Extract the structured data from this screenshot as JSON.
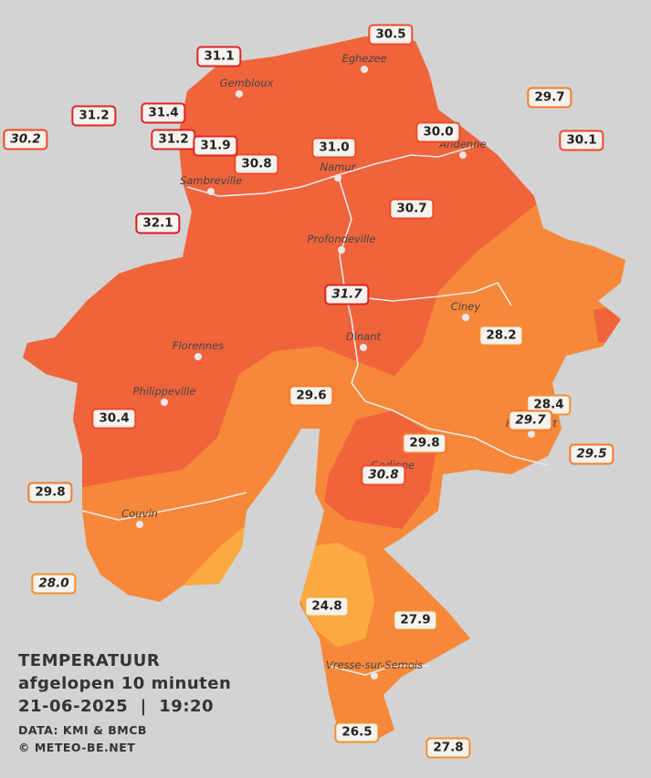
{
  "title": [
    "TEMPERATUUR",
    "afgelopen 10 minuten",
    "21-06-2025  |  19:20"
  ],
  "credits": [
    "DATA: KMI & BMCB",
    "© METEO-BE.NET"
  ],
  "towns": [
    "Eghezee",
    "Gembloux",
    "Andenne",
    "Namur",
    "Sambreville",
    "Profondeville",
    "Ciney",
    "Florennes",
    "Dinant",
    "Philippeville",
    "Rochefort",
    "Gedinne",
    "Couvin",
    "Vresse-sur-Semois"
  ],
  "stations": [
    {
      "label": "30.5",
      "color": "#ee4a28"
    },
    {
      "label": "31.1",
      "color": "#e02424"
    },
    {
      "label": "29.7",
      "color": "#f47a2a"
    },
    {
      "label": "31.2",
      "color": "#e02424"
    },
    {
      "label": "31.4",
      "color": "#e02424"
    },
    {
      "label": "30.2",
      "color": "#ee4a28",
      "italic": true
    },
    {
      "label": "31.2",
      "color": "#e02424"
    },
    {
      "label": "31.9",
      "color": "#e02424"
    },
    {
      "label": "31.0",
      "color": "#ee4a28"
    },
    {
      "label": "30.0",
      "color": "#ee4a28"
    },
    {
      "label": "30.1",
      "color": "#ee4a28"
    },
    {
      "label": "30.8",
      "color": "#ee4a28"
    },
    {
      "label": "32.1",
      "color": "#d8182a"
    },
    {
      "label": "30.7",
      "color": "#ee4a28"
    },
    {
      "label": "31.7",
      "color": "#e02424",
      "italic": true
    },
    {
      "label": "28.2",
      "color": "#f4902c"
    },
    {
      "label": "29.6",
      "color": "#f47a2a"
    },
    {
      "label": "28.4",
      "color": "#f4902c"
    },
    {
      "label": "29.7",
      "color": "#f47a2a",
      "italic": true
    },
    {
      "label": "30.4",
      "color": "#ee4a28"
    },
    {
      "label": "29.8",
      "color": "#f47a2a"
    },
    {
      "label": "29.5",
      "color": "#f47a2a",
      "italic": true
    },
    {
      "label": "30.8",
      "color": "#ee4a28",
      "italic": true
    },
    {
      "label": "29.8",
      "color": "#f47a2a"
    },
    {
      "label": "28.0",
      "color": "#f4902c",
      "italic": true
    },
    {
      "label": "24.8",
      "color": "#f6a83a"
    },
    {
      "label": "27.9",
      "color": "#f4902c"
    },
    {
      "label": "26.5",
      "color": "#f4902c"
    },
    {
      "label": "27.8",
      "color": "#f4902c"
    }
  ]
}
